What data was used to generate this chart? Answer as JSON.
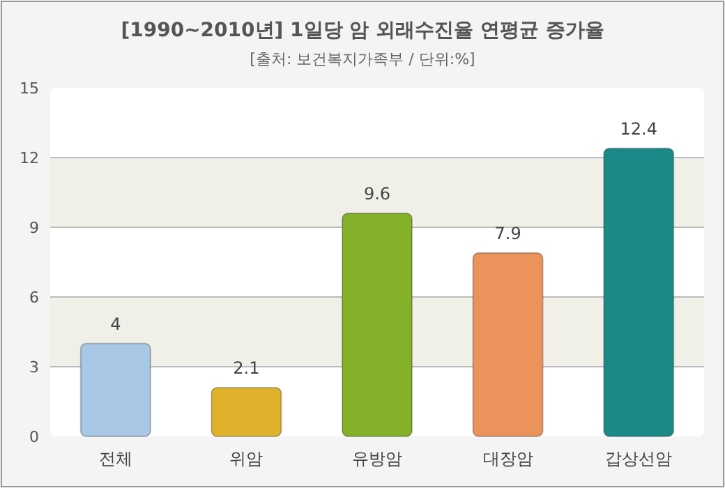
{
  "chart_data": {
    "type": "bar",
    "title": "[1990~2010년] 1일당 암 외래수진율 연평균 증가율",
    "subtitle": "[출처: 보건복지가족부 / 단위:%]",
    "categories": [
      "전체",
      "위암",
      "유방암",
      "대장암",
      "갑상선암"
    ],
    "values": [
      4,
      2.1,
      9.6,
      7.9,
      12.4
    ],
    "colors": [
      "#a9c8e6",
      "#e0b22c",
      "#84b02a",
      "#ec935c",
      "#1a8a88"
    ],
    "ylim": [
      0,
      15
    ],
    "yticks": [
      0,
      3,
      6,
      9,
      12,
      15
    ],
    "grid": "y",
    "data_labels": true
  }
}
